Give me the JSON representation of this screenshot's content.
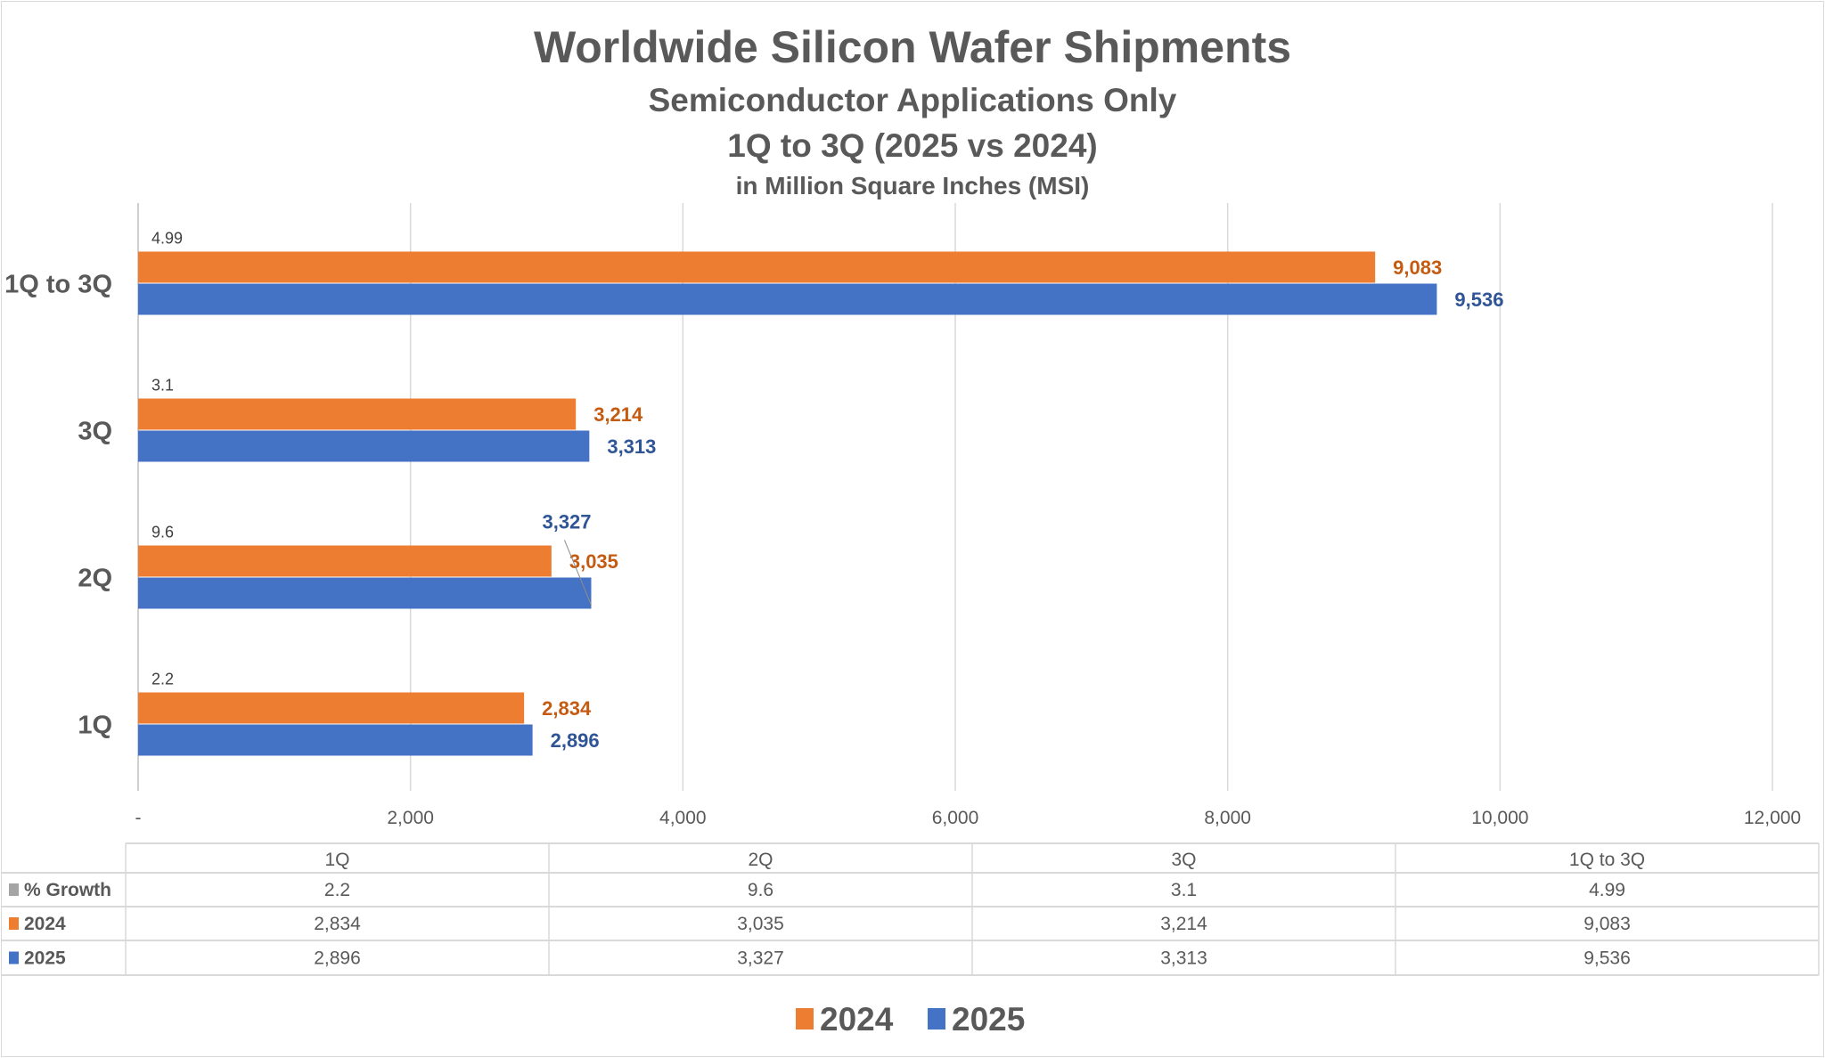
{
  "chart_data": {
    "type": "bar",
    "orientation": "horizontal",
    "title": "Worldwide Silicon Wafer Shipments",
    "subtitle": "Semiconductor Applications Only",
    "subtitle2": "1Q to 3Q (2025 vs 2024)",
    "units": "in Million Square Inches (MSI)",
    "categories": [
      "1Q",
      "2Q",
      "3Q",
      "1Q to 3Q"
    ],
    "series": [
      {
        "name": "2024",
        "color": "#ED7D31",
        "label_color": "#C55A11",
        "values": [
          2834,
          3035,
          3214,
          9083
        ],
        "labels": [
          "2,834",
          "3,035",
          "3,214",
          "9,083"
        ]
      },
      {
        "name": "2025",
        "color": "#4472C4",
        "label_color": "#2F5597",
        "values": [
          2896,
          3327,
          3313,
          9536
        ],
        "labels": [
          "2,896",
          "3,327",
          "3,313",
          "9,536"
        ]
      }
    ],
    "growth": {
      "name": "% Growth",
      "color": "#A5A5A5",
      "values": [
        "2.2",
        "9.6",
        "3.1",
        "4.99"
      ]
    },
    "xlim": [
      0,
      12000
    ],
    "xticks": [
      "-",
      "2,000",
      "4,000",
      "6,000",
      "8,000",
      "10,000",
      "12,000"
    ],
    "grid": true,
    "legend": "bottom",
    "data_table": true
  }
}
